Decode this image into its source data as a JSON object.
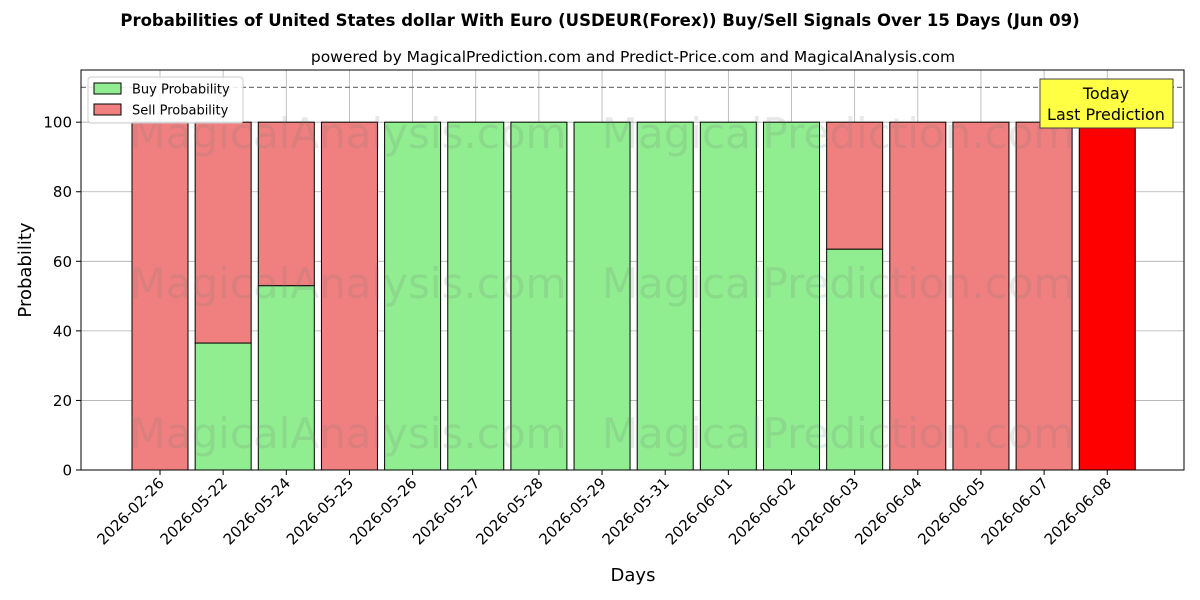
{
  "chart_data": {
    "type": "bar",
    "stacked": true,
    "title": "Probabilities of United States dollar With Euro (USDEUR(Forex)) Buy/Sell Signals Over 15 Days (Jun 09)",
    "subtitle": "powered by MagicalPrediction.com and Predict-Price.com and MagicalAnalysis.com",
    "xlabel": "Days",
    "ylabel": "Probability",
    "ylim": [
      0,
      115
    ],
    "yticks": [
      0,
      20,
      40,
      60,
      80,
      100
    ],
    "grid": true,
    "legend_position": "top-left",
    "reference_line": 110,
    "categories": [
      "2026-02-26",
      "2026-05-22",
      "2026-05-24",
      "2026-05-25",
      "2026-05-26",
      "2026-05-27",
      "2026-05-28",
      "2026-05-29",
      "2026-05-31",
      "2026-06-01",
      "2026-06-02",
      "2026-06-03",
      "2026-06-04",
      "2026-06-05",
      "2026-06-07",
      "2026-06-08"
    ],
    "series": [
      {
        "name": "Buy Probability",
        "color": "#90ee90",
        "values": [
          0,
          36.5,
          53,
          0,
          100,
          100,
          100,
          100,
          100,
          100,
          100,
          63.5,
          0,
          0,
          0,
          0
        ]
      },
      {
        "name": "Sell Probability",
        "color": "#f08080",
        "values": [
          100,
          63.5,
          47,
          100,
          0,
          0,
          0,
          0,
          0,
          0,
          0,
          36.5,
          100,
          100,
          100,
          100
        ]
      }
    ],
    "highlight": {
      "index": 15,
      "color": "#ff0000"
    },
    "annotation": {
      "lines": [
        "Today",
        "Last Prediction"
      ],
      "background": "#ffff44"
    },
    "watermarks": [
      "MagicalAnalysis.com",
      "MagicalPrediction.com"
    ]
  }
}
